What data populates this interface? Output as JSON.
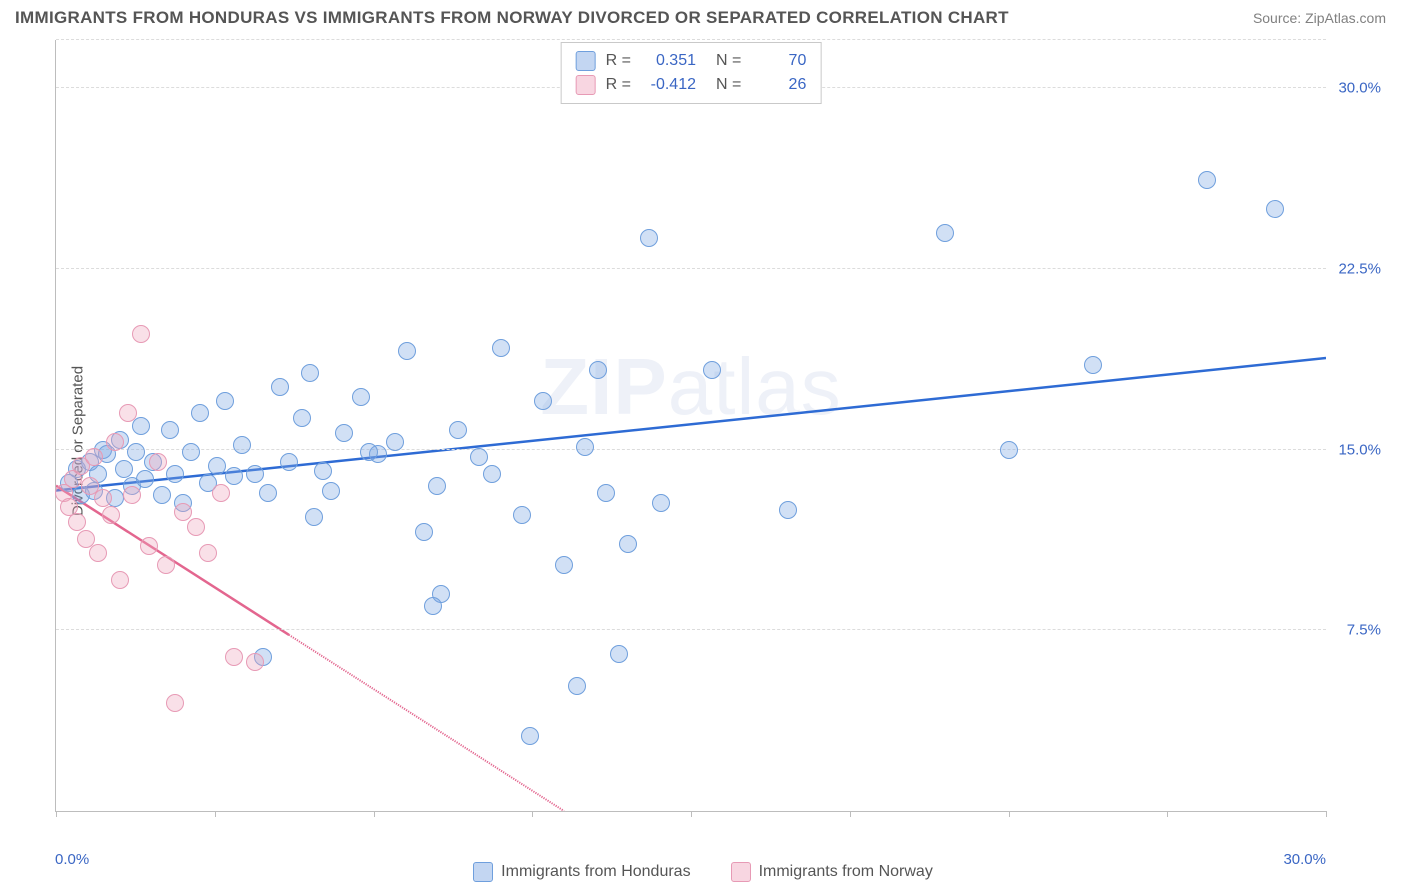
{
  "title": "IMMIGRANTS FROM HONDURAS VS IMMIGRANTS FROM NORWAY DIVORCED OR SEPARATED CORRELATION CHART",
  "source": "Source: ZipAtlas.com",
  "ylabel": "Divorced or Separated",
  "watermark_a": "ZIP",
  "watermark_b": "atlas",
  "chart": {
    "type": "scatter",
    "xlim": [
      0,
      30
    ],
    "ylim": [
      0,
      32
    ],
    "xticks_minor": [
      0,
      3.75,
      7.5,
      11.25,
      15,
      18.75,
      22.5,
      26.25,
      30
    ],
    "xlabel_min": "0.0%",
    "xlabel_max": "30.0%",
    "yticks": [
      {
        "v": 7.5,
        "label": "7.5%"
      },
      {
        "v": 15.0,
        "label": "15.0%"
      },
      {
        "v": 22.5,
        "label": "22.5%"
      },
      {
        "v": 30.0,
        "label": "30.0%"
      }
    ],
    "grid_color": "#dcdcdc",
    "axis_color": "#bdbdbd",
    "background_color": "#ffffff",
    "series": [
      {
        "name": "Immigrants from Honduras",
        "color_fill": "rgba(122,165,226,0.35)",
        "color_stroke": "#6f9fdd",
        "trend_color": "#2e6bd4",
        "r_label": "0.351",
        "n_label": "70",
        "trend": {
          "x1": 0,
          "y1": 13.3,
          "x2": 30,
          "y2": 18.8,
          "dash_from_x": null
        },
        "points": [
          [
            0.3,
            13.6
          ],
          [
            0.5,
            14.2
          ],
          [
            0.6,
            13.1
          ],
          [
            0.8,
            14.5
          ],
          [
            0.9,
            13.3
          ],
          [
            1.0,
            14.0
          ],
          [
            1.1,
            15.0
          ],
          [
            1.2,
            14.8
          ],
          [
            1.4,
            13.0
          ],
          [
            1.5,
            15.4
          ],
          [
            1.6,
            14.2
          ],
          [
            1.8,
            13.5
          ],
          [
            1.9,
            14.9
          ],
          [
            2.0,
            16.0
          ],
          [
            2.1,
            13.8
          ],
          [
            2.3,
            14.5
          ],
          [
            2.5,
            13.1
          ],
          [
            2.7,
            15.8
          ],
          [
            2.8,
            14.0
          ],
          [
            3.0,
            12.8
          ],
          [
            3.2,
            14.9
          ],
          [
            3.4,
            16.5
          ],
          [
            3.6,
            13.6
          ],
          [
            3.8,
            14.3
          ],
          [
            4.0,
            17.0
          ],
          [
            4.2,
            13.9
          ],
          [
            4.4,
            15.2
          ],
          [
            4.7,
            14.0
          ],
          [
            5.0,
            13.2
          ],
          [
            5.3,
            17.6
          ],
          [
            5.5,
            14.5
          ],
          [
            5.8,
            16.3
          ],
          [
            6.0,
            18.2
          ],
          [
            6.3,
            14.1
          ],
          [
            6.5,
            13.3
          ],
          [
            6.8,
            15.7
          ],
          [
            7.2,
            17.2
          ],
          [
            7.6,
            14.8
          ],
          [
            8.0,
            15.3
          ],
          [
            8.3,
            19.1
          ],
          [
            8.7,
            11.6
          ],
          [
            9.0,
            13.5
          ],
          [
            9.1,
            9.0
          ],
          [
            9.5,
            15.8
          ],
          [
            10.0,
            14.7
          ],
          [
            10.3,
            14.0
          ],
          [
            10.5,
            19.2
          ],
          [
            11.0,
            12.3
          ],
          [
            11.2,
            3.1
          ],
          [
            11.5,
            17.0
          ],
          [
            12.0,
            10.2
          ],
          [
            12.3,
            5.2
          ],
          [
            12.5,
            15.1
          ],
          [
            12.8,
            18.3
          ],
          [
            13.0,
            13.2
          ],
          [
            13.3,
            6.5
          ],
          [
            13.5,
            11.1
          ],
          [
            14.0,
            23.8
          ],
          [
            14.3,
            12.8
          ],
          [
            15.5,
            18.3
          ],
          [
            17.3,
            12.5
          ],
          [
            21.0,
            24.0
          ],
          [
            22.5,
            15.0
          ],
          [
            24.5,
            18.5
          ],
          [
            27.2,
            26.2
          ],
          [
            28.8,
            25.0
          ],
          [
            4.9,
            6.4
          ],
          [
            8.9,
            8.5
          ],
          [
            6.1,
            12.2
          ],
          [
            7.4,
            14.9
          ]
        ]
      },
      {
        "name": "Immigrants from Norway",
        "color_fill": "rgba(239,165,188,0.35)",
        "color_stroke": "#e79ab5",
        "trend_color": "#e3668f",
        "r_label": "-0.412",
        "n_label": "26",
        "trend": {
          "x1": 0,
          "y1": 13.5,
          "x2": 12,
          "y2": 0,
          "dash_from_x": 5.5
        },
        "points": [
          [
            0.2,
            13.2
          ],
          [
            0.3,
            12.6
          ],
          [
            0.4,
            13.8
          ],
          [
            0.5,
            12.0
          ],
          [
            0.6,
            14.3
          ],
          [
            0.7,
            11.3
          ],
          [
            0.8,
            13.5
          ],
          [
            0.9,
            14.7
          ],
          [
            1.0,
            10.7
          ],
          [
            1.1,
            13.0
          ],
          [
            1.3,
            12.3
          ],
          [
            1.4,
            15.3
          ],
          [
            1.5,
            9.6
          ],
          [
            1.7,
            16.5
          ],
          [
            1.8,
            13.1
          ],
          [
            2.0,
            19.8
          ],
          [
            2.2,
            11.0
          ],
          [
            2.4,
            14.5
          ],
          [
            2.6,
            10.2
          ],
          [
            2.8,
            4.5
          ],
          [
            3.0,
            12.4
          ],
          [
            3.3,
            11.8
          ],
          [
            3.6,
            10.7
          ],
          [
            4.2,
            6.4
          ],
          [
            4.7,
            6.2
          ],
          [
            3.9,
            13.2
          ]
        ]
      }
    ]
  },
  "legend_top": {
    "r_prefix": "R  =",
    "n_prefix": "N  ="
  }
}
